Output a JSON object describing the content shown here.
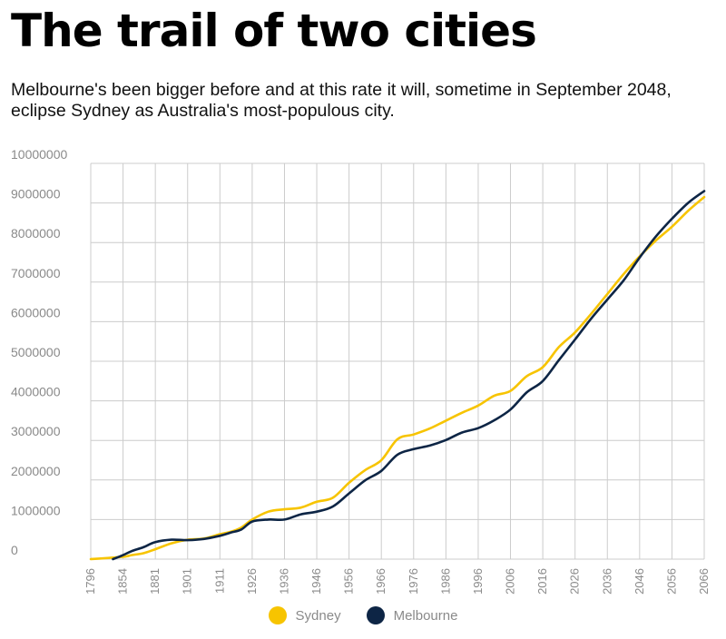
{
  "title": "The trail of two cities",
  "subtitle": "Melbourne's been bigger before and at this rate it will, sometime in September 2048, eclipse Sydney as Australia's most-populous city.",
  "colors": {
    "sydney": "#F7C400",
    "melbourne": "#0D2545",
    "grid": "#cccccc",
    "axis_text": "#8a8a8a"
  },
  "chart_data": {
    "type": "line",
    "title": "The trail of two cities",
    "xlabel": "",
    "ylabel": "",
    "xlim": [
      1796,
      2066
    ],
    "ylim": [
      0,
      10000000
    ],
    "grid": true,
    "legend": "bottom-center",
    "x_ticks": [
      1796,
      1854,
      1881,
      1901,
      1911,
      1926,
      1936,
      1946,
      1956,
      1966,
      1976,
      1986,
      1996,
      2006,
      2016,
      2026,
      2036,
      2046,
      2056,
      2066
    ],
    "y_ticks": [
      0,
      1000000,
      2000000,
      3000000,
      4000000,
      5000000,
      6000000,
      7000000,
      8000000,
      9000000,
      10000000
    ],
    "series": [
      {
        "name": "Sydney",
        "color": "#F7C400",
        "x": [
          1796,
          1854,
          1861,
          1871,
          1881,
          1891,
          1901,
          1906,
          1911,
          1916,
          1921,
          1926,
          1931,
          1936,
          1941,
          1946,
          1951,
          1956,
          1961,
          1966,
          1971,
          1976,
          1981,
          1986,
          1991,
          1996,
          2001,
          2006,
          2011,
          2016,
          2021,
          2026,
          2031,
          2036,
          2041,
          2046,
          2051,
          2056,
          2061,
          2066
        ],
        "y": [
          0,
          60000,
          100000,
          150000,
          250000,
          400000,
          490000,
          520000,
          630000,
          690000,
          800000,
          1000000,
          1200000,
          1260000,
          1300000,
          1450000,
          1550000,
          1930000,
          2250000,
          2500000,
          3030000,
          3150000,
          3300000,
          3500000,
          3700000,
          3880000,
          4130000,
          4250000,
          4620000,
          4850000,
          5360000,
          5730000,
          6200000,
          6700000,
          7200000,
          7650000,
          8050000,
          8400000,
          8800000,
          9150000
        ]
      },
      {
        "name": "Melbourne",
        "color": "#0D2545",
        "x": [
          1836,
          1854,
          1861,
          1871,
          1881,
          1891,
          1901,
          1906,
          1911,
          1916,
          1921,
          1926,
          1931,
          1936,
          1941,
          1946,
          1951,
          1956,
          1961,
          1966,
          1971,
          1976,
          1981,
          1986,
          1991,
          1996,
          2001,
          2006,
          2011,
          2016,
          2021,
          2026,
          2031,
          2036,
          2041,
          2046,
          2051,
          2056,
          2061,
          2066
        ],
        "y": [
          0,
          100000,
          200000,
          300000,
          430000,
          490000,
          480000,
          510000,
          590000,
          670000,
          750000,
          950000,
          1000000,
          1000000,
          1130000,
          1200000,
          1330000,
          1660000,
          1990000,
          2230000,
          2640000,
          2780000,
          2870000,
          3010000,
          3200000,
          3310000,
          3510000,
          3780000,
          4210000,
          4500000,
          5030000,
          5550000,
          6080000,
          6560000,
          7040000,
          7620000,
          8150000,
          8600000,
          9000000,
          9300000
        ]
      }
    ]
  }
}
